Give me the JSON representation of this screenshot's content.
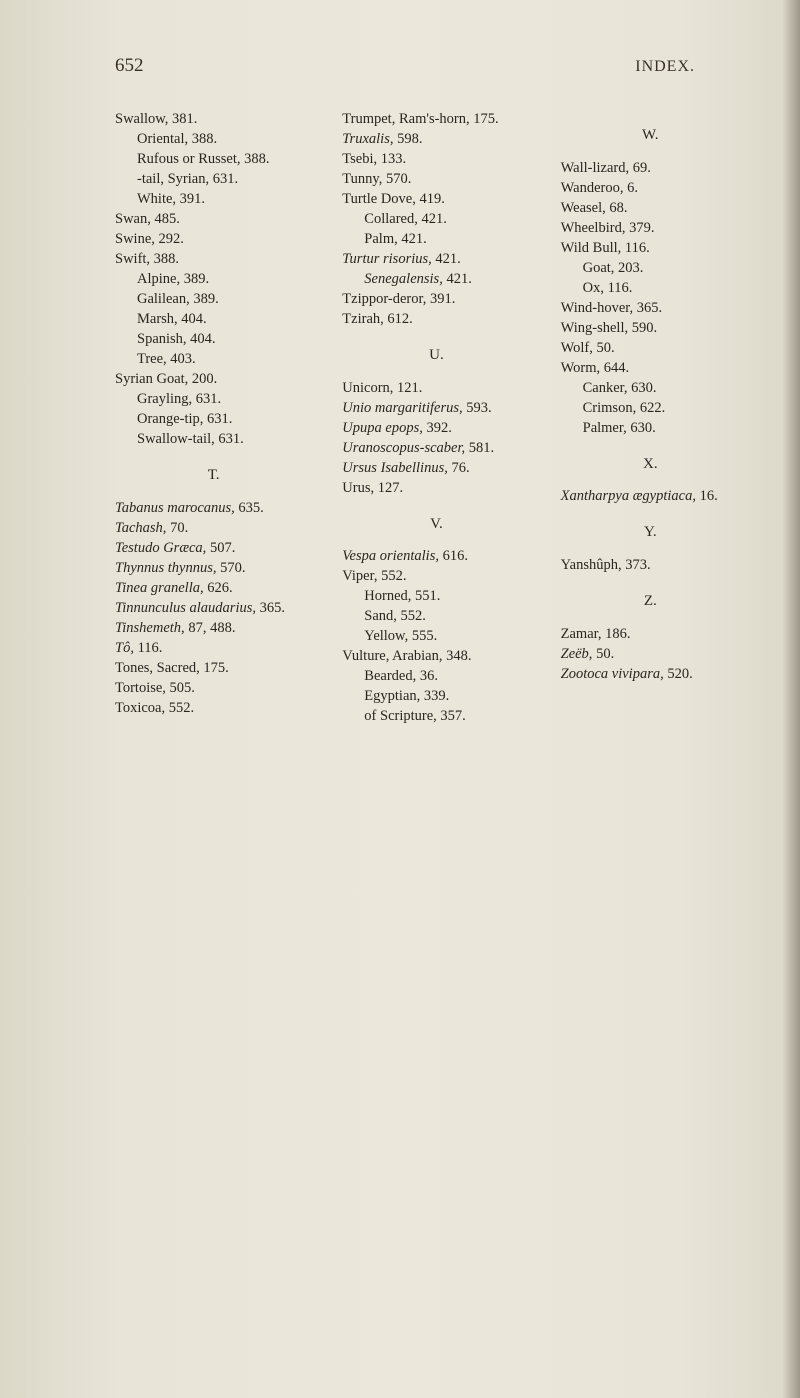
{
  "pageNumber": "652",
  "sectionTitle": "INDEX.",
  "col1": [
    {
      "t": "Swallow, 381.",
      "i": 0
    },
    {
      "t": "Oriental, 388.",
      "i": 1
    },
    {
      "t": "Rufous or Russet, 388.",
      "i": 1
    },
    {
      "t": "-tail, Syrian, 631.",
      "i": 1
    },
    {
      "t": "White, 391.",
      "i": 1
    },
    {
      "t": "Swan, 485.",
      "i": 0
    },
    {
      "t": "Swine, 292.",
      "i": 0
    },
    {
      "t": "Swift, 388.",
      "i": 0
    },
    {
      "t": "Alpine, 389.",
      "i": 1
    },
    {
      "t": "Galilean, 389.",
      "i": 1
    },
    {
      "t": "Marsh, 404.",
      "i": 1
    },
    {
      "t": "Spanish, 404.",
      "i": 1
    },
    {
      "t": "Tree, 403.",
      "i": 1
    },
    {
      "t": "Syrian Goat, 200.",
      "i": 0
    },
    {
      "t": "Grayling, 631.",
      "i": 1
    },
    {
      "t": "Orange-tip, 631.",
      "i": 1
    },
    {
      "t": "Swallow-tail, 631.",
      "i": 1
    },
    {
      "letter": "T."
    },
    {
      "t": "Tabanus marocanus, 635.",
      "i": 0,
      "it": [
        "Tabanus marocanus,"
      ]
    },
    {
      "t": "Tachash, 70.",
      "i": 0,
      "it": [
        "Tachash,"
      ]
    },
    {
      "t": "Testudo Græca, 507.",
      "i": 0,
      "it": [
        "Testudo Græca,"
      ]
    },
    {
      "t": "Thynnus thynnus, 570.",
      "i": 0,
      "it": [
        "Thynnus thynnus,"
      ]
    },
    {
      "t": "Tinea granella, 626.",
      "i": 0,
      "it": [
        "Tinea granella,"
      ]
    },
    {
      "t": "Tinnunculus alaudarius, 365.",
      "i": 0,
      "it": [
        "Tinnunculus alaudarius,"
      ]
    },
    {
      "t": "Tinshemeth, 87, 488.",
      "i": 0,
      "it": [
        "Tinshemeth,"
      ]
    },
    {
      "t": "Tô, 116.",
      "i": 0,
      "it": [
        "Tô,"
      ]
    },
    {
      "t": "Tones, Sacred, 175.",
      "i": 0
    },
    {
      "t": "Tortoise, 505.",
      "i": 0
    },
    {
      "t": "Toxicoa, 552.",
      "i": 0
    }
  ],
  "col2": [
    {
      "t": "Trumpet, Ram's-horn, 175.",
      "i": 0
    },
    {
      "t": "Truxalis, 598.",
      "i": 0,
      "it": [
        "Truxalis,"
      ]
    },
    {
      "t": "Tsebi, 133.",
      "i": 0
    },
    {
      "t": "Tunny, 570.",
      "i": 0
    },
    {
      "t": "Turtle Dove, 419.",
      "i": 0
    },
    {
      "t": "Collared, 421.",
      "i": 1
    },
    {
      "t": "Palm, 421.",
      "i": 1
    },
    {
      "t": "Turtur risorius, 421.",
      "i": 0,
      "it": [
        "Turtur risorius,"
      ]
    },
    {
      "t": "Senegalensis, 421.",
      "i": 1,
      "it": [
        "Senegalensis,"
      ]
    },
    {
      "t": "Tzippor-deror, 391.",
      "i": 0
    },
    {
      "t": "Tzirah, 612.",
      "i": 0
    },
    {
      "letter": "U."
    },
    {
      "t": "Unicorn, 121.",
      "i": 0
    },
    {
      "t": "Unio margaritiferus, 593.",
      "i": 0,
      "it": [
        "Unio margaritiferus,"
      ]
    },
    {
      "t": "Upupa epops, 392.",
      "i": 0,
      "it": [
        "Upupa epops,"
      ]
    },
    {
      "t": "Uranoscopus-scaber, 581.",
      "i": 0,
      "it": [
        "Uranoscopus-scaber,"
      ]
    },
    {
      "t": "Ursus Isabellinus, 76.",
      "i": 0,
      "it": [
        "Ursus Isabellinus,"
      ]
    },
    {
      "t": "Urus, 127.",
      "i": 0
    },
    {
      "letter": "V."
    },
    {
      "t": "Vespa orientalis, 616.",
      "i": 0,
      "it": [
        "Vespa orientalis,"
      ]
    },
    {
      "t": "Viper, 552.",
      "i": 0
    },
    {
      "t": "Horned, 551.",
      "i": 1
    },
    {
      "t": "Sand, 552.",
      "i": 1
    },
    {
      "t": "Yellow, 555.",
      "i": 1
    },
    {
      "t": "Vulture, Arabian, 348.",
      "i": 0
    },
    {
      "t": "Bearded, 36.",
      "i": 1
    },
    {
      "t": "Egyptian, 339.",
      "i": 1
    },
    {
      "t": "of Scripture, 357.",
      "i": 1
    }
  ],
  "col3": [
    {
      "letter": "W."
    },
    {
      "t": "Wall-lizard, 69.",
      "i": 0
    },
    {
      "t": "Wanderoo, 6.",
      "i": 0
    },
    {
      "t": "Weasel, 68.",
      "i": 0
    },
    {
      "t": "Wheelbird, 379.",
      "i": 0
    },
    {
      "t": "Wild Bull, 116.",
      "i": 0
    },
    {
      "t": "Goat, 203.",
      "i": 1
    },
    {
      "t": "Ox, 116.",
      "i": 1
    },
    {
      "t": "Wind-hover, 365.",
      "i": 0
    },
    {
      "t": "Wing-shell, 590.",
      "i": 0
    },
    {
      "t": "Wolf, 50.",
      "i": 0
    },
    {
      "t": "Worm, 644.",
      "i": 0
    },
    {
      "t": "Canker, 630.",
      "i": 1
    },
    {
      "t": "Crimson, 622.",
      "i": 1
    },
    {
      "t": "Palmer, 630.",
      "i": 1
    },
    {
      "letter": "X."
    },
    {
      "t": "Xantharpya ægyptiaca, 16.",
      "i": 0,
      "it": [
        "Xantharpya ægyptiaca,"
      ]
    },
    {
      "letter": "Y."
    },
    {
      "t": "Yanshûph, 373.",
      "i": 0
    },
    {
      "letter": "Z."
    },
    {
      "t": "Zamar, 186.",
      "i": 0
    },
    {
      "t": "Zeëb, 50.",
      "i": 0,
      "it": [
        "Zeëb,"
      ]
    },
    {
      "t": "Zootoca vivipara, 520.",
      "i": 0,
      "it": [
        "Zootoca vivipara,"
      ]
    }
  ]
}
